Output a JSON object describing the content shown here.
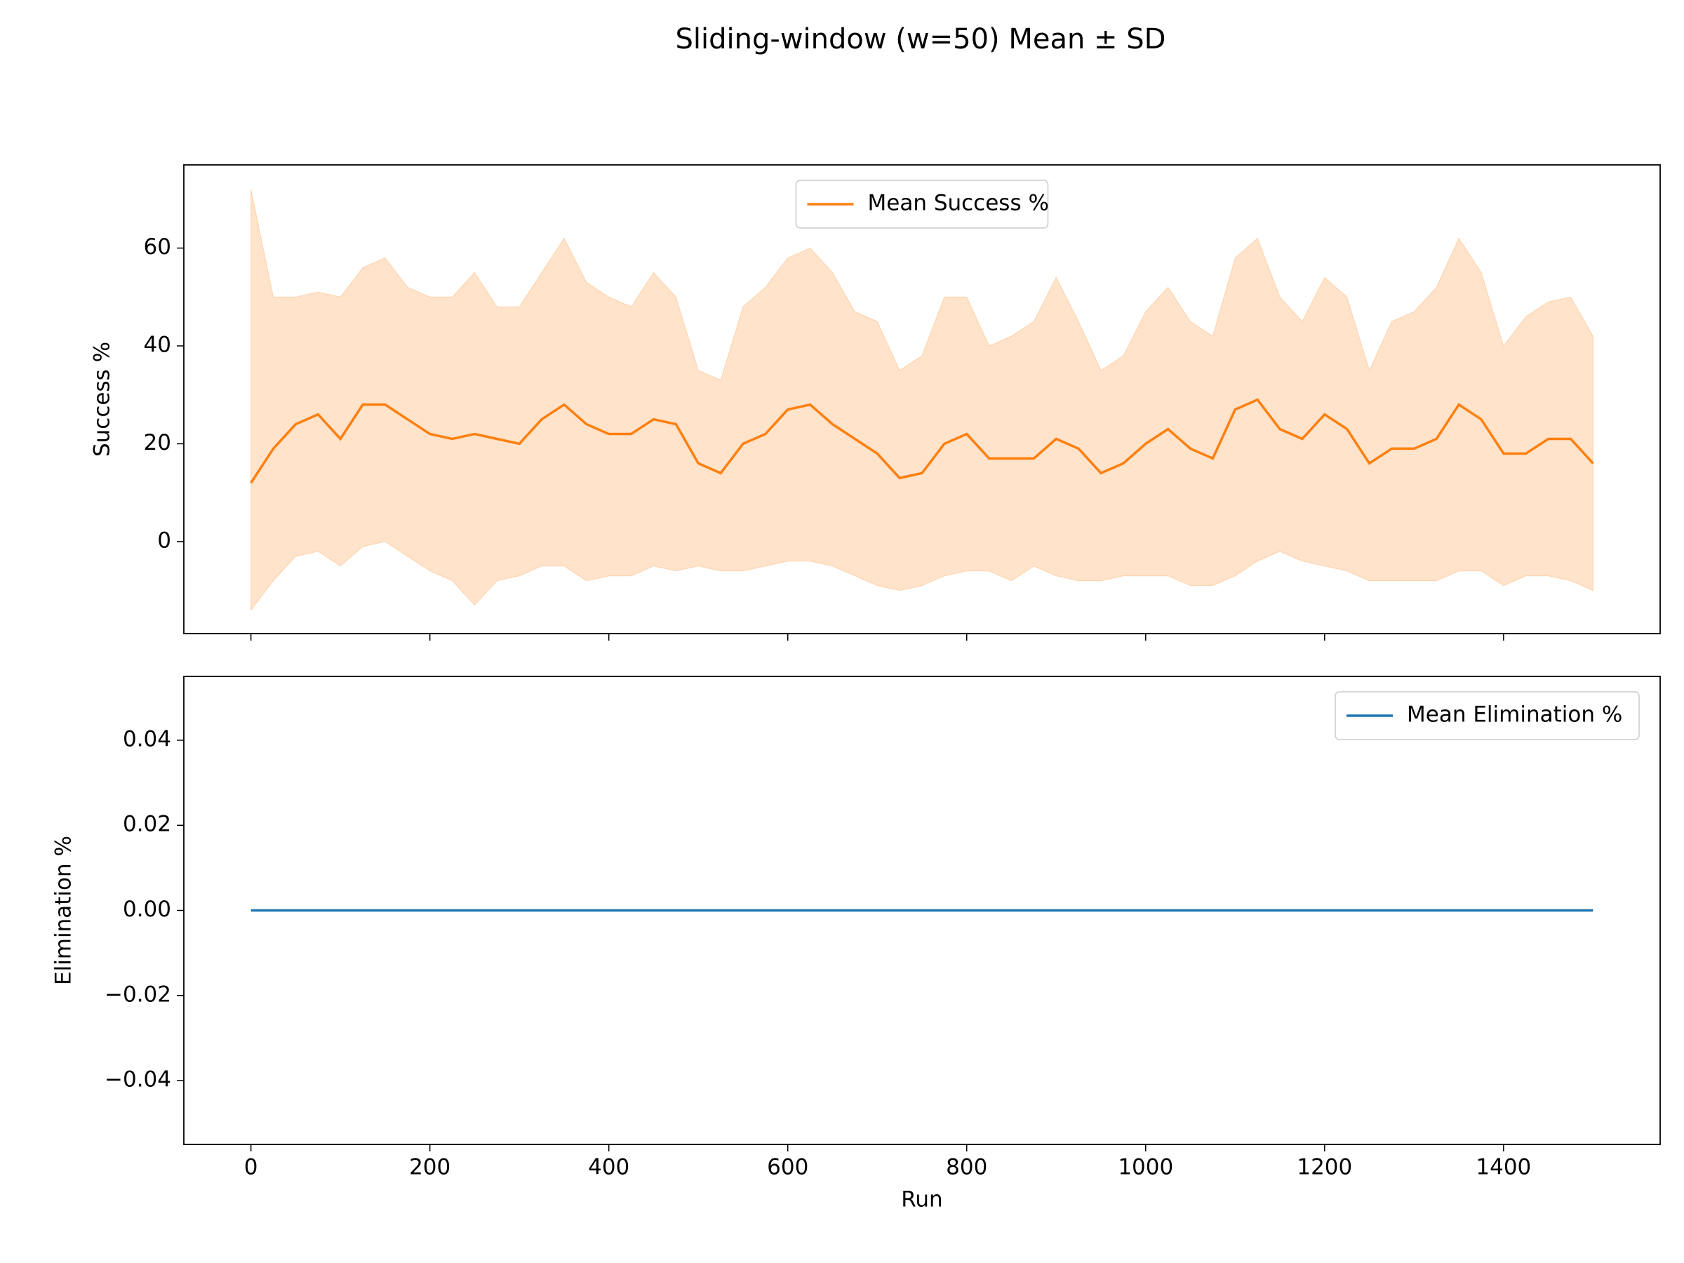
{
  "chart_data": [
    {
      "type": "line",
      "title": "Sliding-window (w=50) Mean ± SD",
      "ylabel": "Success %",
      "x": [
        0,
        25,
        50,
        75,
        100,
        125,
        150,
        175,
        200,
        225,
        250,
        275,
        300,
        325,
        350,
        375,
        400,
        425,
        450,
        475,
        500,
        525,
        550,
        575,
        600,
        625,
        650,
        675,
        700,
        725,
        750,
        775,
        800,
        825,
        850,
        875,
        900,
        925,
        950,
        975,
        1000,
        1025,
        1050,
        1075,
        1100,
        1125,
        1150,
        1175,
        1200,
        1225,
        1250,
        1275,
        1300,
        1325,
        1350,
        1375,
        1400,
        1425,
        1450,
        1475,
        1500
      ],
      "series": [
        {
          "name": "Mean Success %",
          "color": "#ff7f0e",
          "values": [
            12,
            19,
            24,
            26,
            21,
            28,
            28,
            25,
            22,
            21,
            22,
            21,
            20,
            25,
            28,
            24,
            22,
            22,
            25,
            24,
            16,
            14,
            20,
            22,
            27,
            28,
            24,
            21,
            18,
            13,
            14,
            20,
            22,
            17,
            17,
            17,
            21,
            19,
            14,
            16,
            20,
            23,
            19,
            17,
            27,
            29,
            23,
            21,
            26,
            23,
            16,
            19,
            19,
            21,
            28,
            25,
            18,
            18,
            21,
            21,
            16
          ],
          "band": {
            "color": "#ff7f0e",
            "upper": [
              72,
              50,
              50,
              51,
              50,
              56,
              58,
              52,
              50,
              50,
              55,
              48,
              48,
              55,
              62,
              53,
              50,
              48,
              55,
              50,
              35,
              33,
              48,
              52,
              58,
              60,
              55,
              47,
              45,
              35,
              38,
              50,
              50,
              40,
              42,
              45,
              54,
              45,
              35,
              38,
              47,
              52,
              45,
              42,
              58,
              62,
              50,
              45,
              54,
              50,
              35,
              45,
              47,
              52,
              62,
              55,
              40,
              46,
              49,
              50,
              42
            ],
            "lower": [
              -14,
              -8,
              -3,
              -2,
              -5,
              -1,
              0,
              -3,
              -6,
              -8,
              -13,
              -8,
              -7,
              -5,
              -5,
              -8,
              -7,
              -7,
              -5,
              -6,
              -5,
              -6,
              -6,
              -5,
              -4,
              -4,
              -5,
              -7,
              -9,
              -10,
              -9,
              -7,
              -6,
              -6,
              -8,
              -5,
              -7,
              -8,
              -8,
              -7,
              -7,
              -7,
              -9,
              -9,
              -7,
              -4,
              -2,
              -4,
              -5,
              -6,
              -8,
              -8,
              -8,
              -8,
              -6,
              -6,
              -9,
              -7,
              -7,
              -8,
              -10
            ]
          }
        }
      ],
      "xlim": [
        -75,
        1575
      ],
      "xticks": [
        0,
        200,
        400,
        600,
        800,
        1000,
        1200,
        1400
      ],
      "ylim": [
        -18.8,
        77
      ],
      "yticks": [
        0,
        20,
        40,
        60
      ],
      "legend": "upper center"
    },
    {
      "type": "line",
      "xlabel": "Run",
      "ylabel": "Elimination %",
      "x": [
        0,
        1500
      ],
      "series": [
        {
          "name": "Mean Elimination %",
          "color": "#1f77b4",
          "values": [
            0,
            0
          ]
        }
      ],
      "xlim": [
        -75,
        1575
      ],
      "xticks": [
        0,
        200,
        400,
        600,
        800,
        1000,
        1200,
        1400
      ],
      "ylim": [
        -0.055,
        0.055
      ],
      "yticks": [
        {
          "value": -0.04,
          "label": "−0.04"
        },
        {
          "value": -0.02,
          "label": "−0.02"
        },
        {
          "value": 0,
          "label": "0.00"
        },
        {
          "value": 0.02,
          "label": "0.02"
        },
        {
          "value": 0.04,
          "label": "0.04"
        }
      ],
      "legend": "upper right"
    }
  ]
}
